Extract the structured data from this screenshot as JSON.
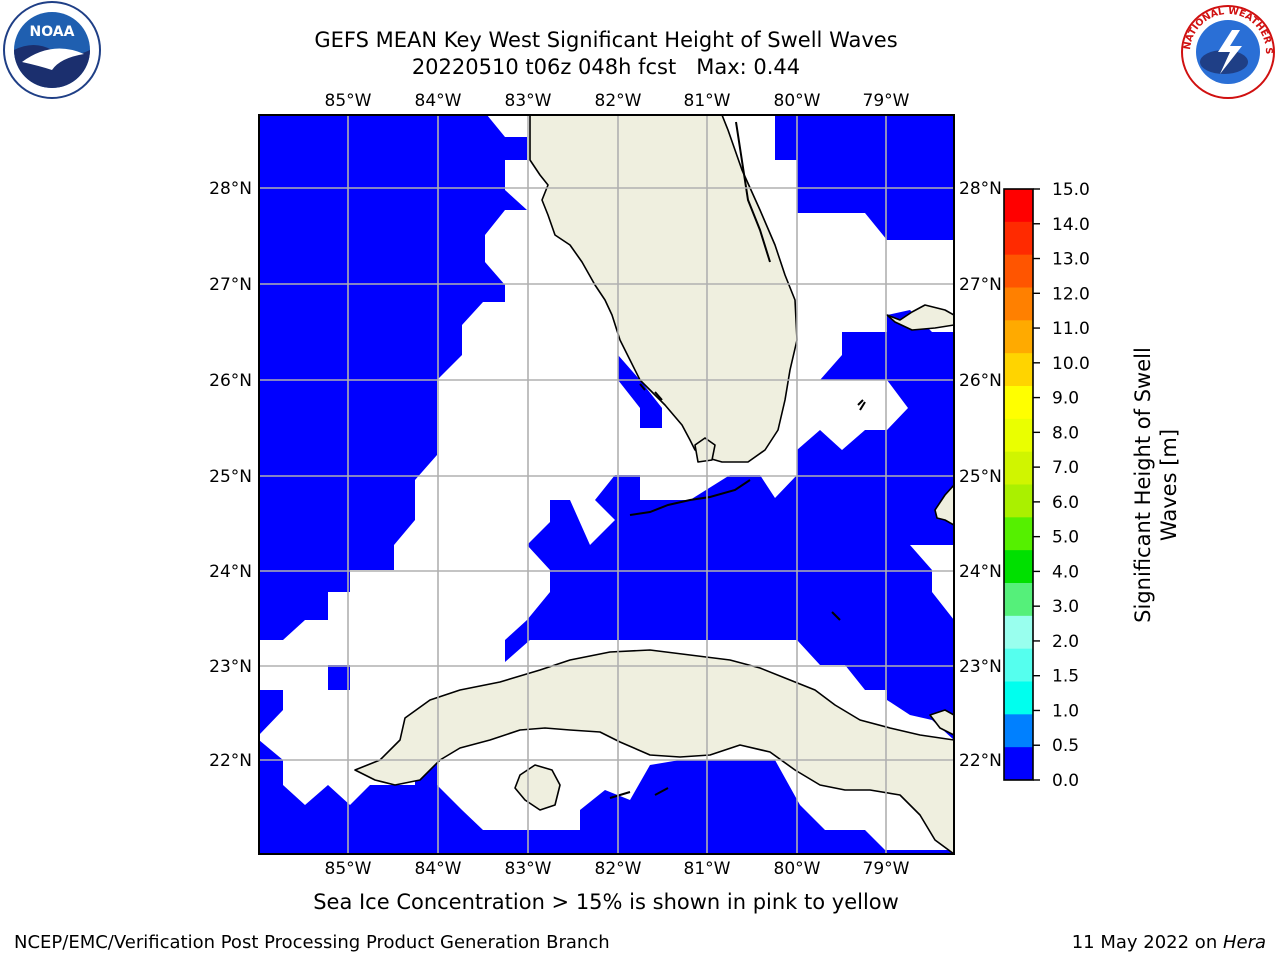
{
  "title_line1": "GEFS MEAN Key West Significant Height of Swell Waves",
  "title_line2": "20220510 t06z 048h fcst   Max: 0.44",
  "caption": "Sea Ice Concentration > 15% is shown in pink to yellow",
  "footer_left": "NCEP/EMC/Verification Post Processing Product Generation Branch",
  "footer_right_date": "11 May 2022 on ",
  "footer_right_host": "Hera",
  "logo_left": {
    "icon": "noaa-logo",
    "text": "NOAA"
  },
  "logo_right": {
    "icon": "national-weather-service-logo",
    "text": "NATIONAL WEATHER SERVICE"
  },
  "map": {
    "lon_labels": [
      "85°W",
      "84°W",
      "83°W",
      "82°W",
      "81°W",
      "80°W",
      "79°W"
    ],
    "lat_labels": [
      "28°N",
      "27°N",
      "26°N",
      "25°N",
      "24°N",
      "23°N",
      "22°N"
    ],
    "land_color": "#efefdf",
    "water_fill_color": "#0000ff",
    "grid_color": "#b0b0b0"
  },
  "colorbar": {
    "label_line1": "Significant Height of Swell",
    "label_line2": "Waves [m]",
    "ticks": [
      "15.0",
      "14.0",
      "13.0",
      "12.0",
      "11.0",
      "10.0",
      "9.0",
      "8.0",
      "7.0",
      "6.0",
      "5.0",
      "4.0",
      "3.0",
      "2.0",
      "1.5",
      "1.0",
      "0.5",
      "0.0"
    ],
    "colors_top_to_bottom": [
      "#ff0000",
      "#ff2a00",
      "#ff5500",
      "#ff8000",
      "#ffaa00",
      "#ffd400",
      "#ffff00",
      "#eaff00",
      "#d0f500",
      "#aaf000",
      "#55f000",
      "#00e000",
      "#55f07a",
      "#99ffee",
      "#55ffee",
      "#00ffee",
      "#0080ff",
      "#0000ff"
    ]
  }
}
